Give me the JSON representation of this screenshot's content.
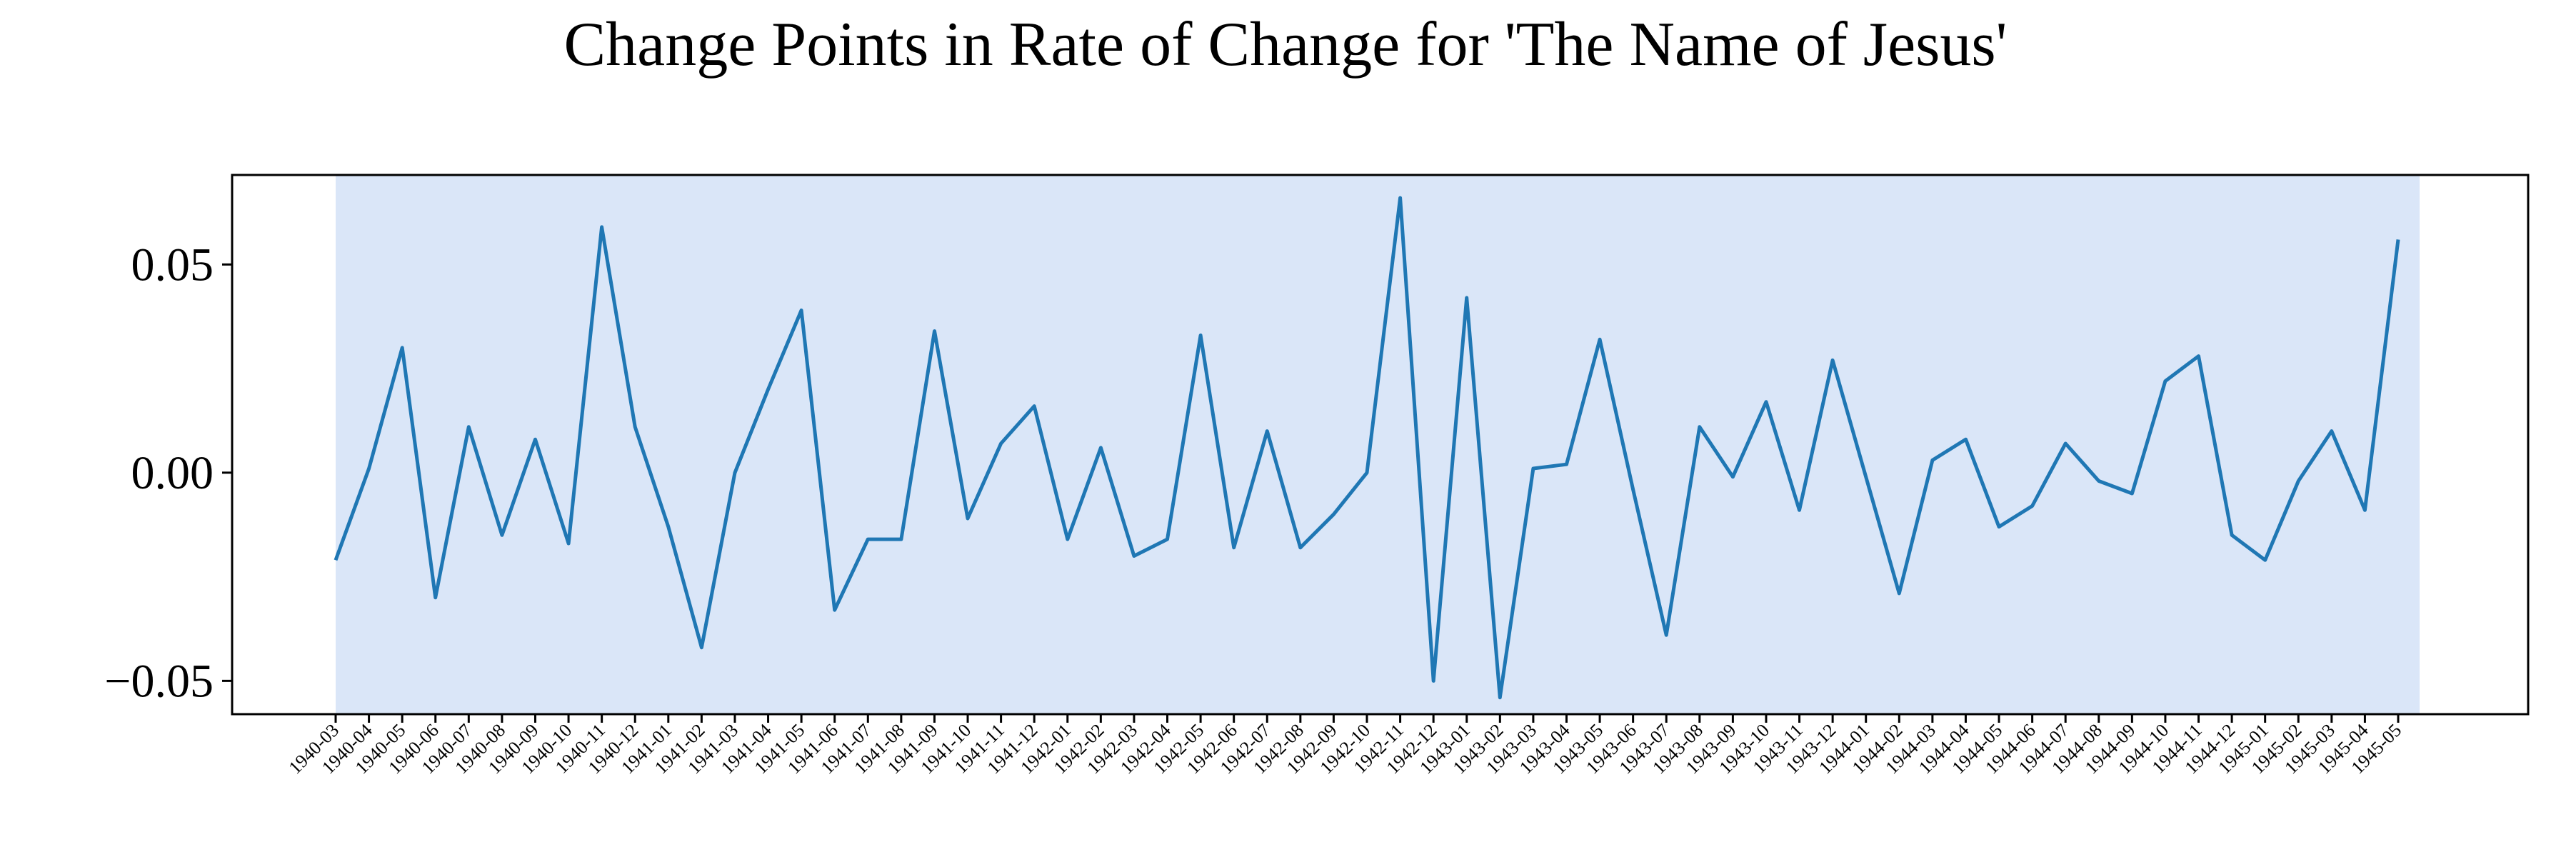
{
  "chart_data": {
    "type": "line",
    "title": "Change Points in Rate of Change for 'The Name of Jesus'",
    "xlabel": "",
    "ylabel": "",
    "ylim": [
      -0.058,
      0.0715
    ],
    "yticks": [
      -0.05,
      0.0,
      0.05
    ],
    "ytick_labels": [
      "−0.05",
      "0.00",
      "0.05"
    ],
    "grid": false,
    "legend": "none",
    "line_color": "#1f77b4",
    "highlight_color": "#dae6f8",
    "highlight_span": [
      "1940-03",
      "1945-05"
    ],
    "x": [
      "1940-03",
      "1940-04",
      "1940-05",
      "1940-06",
      "1940-07",
      "1940-08",
      "1940-09",
      "1940-10",
      "1940-11",
      "1940-12",
      "1941-01",
      "1941-02",
      "1941-03",
      "1941-04",
      "1941-05",
      "1941-06",
      "1941-07",
      "1941-08",
      "1941-09",
      "1941-10",
      "1941-11",
      "1941-12",
      "1942-01",
      "1942-02",
      "1942-03",
      "1942-04",
      "1942-05",
      "1942-06",
      "1942-07",
      "1942-08",
      "1942-09",
      "1942-10",
      "1942-11",
      "1942-12",
      "1943-01",
      "1943-02",
      "1943-03",
      "1943-04",
      "1943-05",
      "1943-06",
      "1943-07",
      "1943-08",
      "1943-09",
      "1943-10",
      "1943-11",
      "1943-12",
      "1944-01",
      "1944-02",
      "1944-03",
      "1944-04",
      "1944-05",
      "1944-06",
      "1944-07",
      "1944-08",
      "1944-09",
      "1944-10",
      "1944-11",
      "1944-12",
      "1945-01",
      "1945-02",
      "1945-03",
      "1945-04",
      "1945-05"
    ],
    "values": [
      -0.021,
      0.001,
      0.03,
      -0.03,
      0.011,
      -0.015,
      0.008,
      -0.017,
      0.059,
      0.011,
      -0.013,
      -0.042,
      0.0,
      0.02,
      0.039,
      -0.033,
      -0.016,
      -0.016,
      0.034,
      -0.011,
      0.007,
      0.016,
      -0.016,
      0.006,
      -0.02,
      -0.016,
      0.033,
      -0.018,
      0.01,
      -0.018,
      -0.01,
      0.0,
      0.066,
      -0.05,
      0.042,
      -0.054,
      0.001,
      0.002,
      0.032,
      -0.004,
      -0.039,
      0.011,
      -0.001,
      0.017,
      -0.009,
      0.027,
      -0.001,
      -0.029,
      0.003,
      0.008,
      -0.013,
      -0.008,
      0.007,
      -0.002,
      -0.005,
      0.022,
      0.028,
      -0.015,
      -0.021,
      -0.002,
      0.01,
      -0.009,
      0.056
    ]
  }
}
